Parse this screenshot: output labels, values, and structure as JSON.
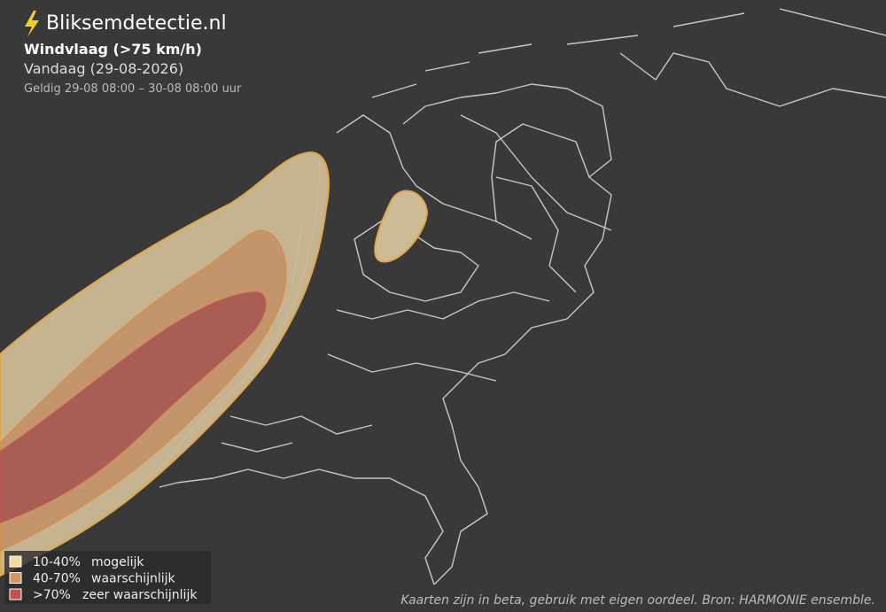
{
  "header": {
    "brand": "Bliksemdetectie.nl",
    "title": "Windvlaag (>75 km/h)",
    "subtitle": "Vandaag (29-08-2026)",
    "validity": "Geldig 29-08 08:00 – 30-08 08:00 uur"
  },
  "legend": [
    {
      "range": "10-40%",
      "label": "mogelijk",
      "color": "#f4d9a0"
    },
    {
      "range": "40-70%",
      "label": "waarschijnlijk",
      "color": "#d9955e"
    },
    {
      "range": ">70%",
      "label": "zeer waarschijnlijk",
      "color": "#c0534c"
    }
  ],
  "footer": "Kaarten zijn in beta, gebruik met eigen oordeel. Bron: HARMONIE ensemble."
}
